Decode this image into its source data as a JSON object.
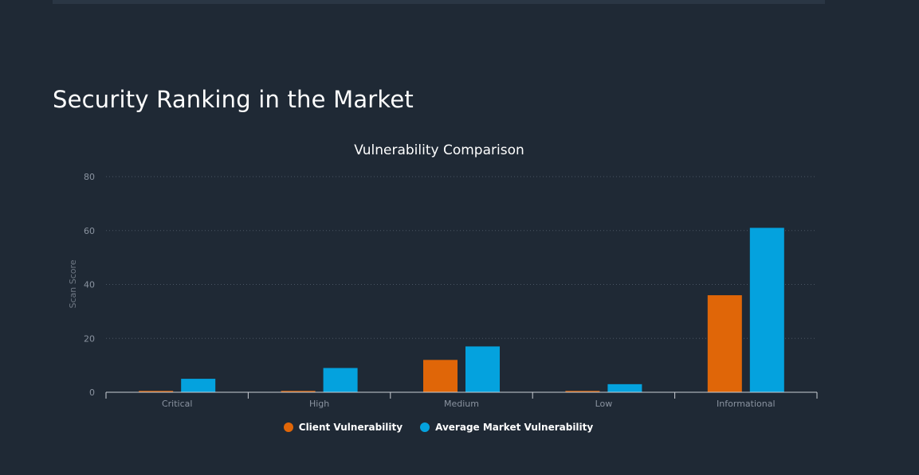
{
  "page": {
    "title": "Security Ranking in the Market"
  },
  "colors": {
    "background": "#1f2935",
    "client": "#e06608",
    "market": "#04a2de",
    "grid": "#4a5563",
    "axis_text": "#8a93a0"
  },
  "chart_data": {
    "type": "bar",
    "title": "Vulnerability Comparison",
    "xlabel": "",
    "ylabel": "Scan Score",
    "categories": [
      "Critical",
      "High",
      "Medium",
      "Low",
      "Informational"
    ],
    "series": [
      {
        "name": "Client Vulnerability",
        "color": "#e06608",
        "values": [
          0.5,
          0.5,
          12,
          0.5,
          36
        ]
      },
      {
        "name": "Average Market Vulnerability",
        "color": "#04a2de",
        "values": [
          5,
          9,
          17,
          3,
          61
        ]
      }
    ],
    "ylim": [
      0,
      80
    ],
    "yticks": [
      0,
      20,
      40,
      60,
      80
    ],
    "grid": true,
    "legend_position": "bottom"
  }
}
